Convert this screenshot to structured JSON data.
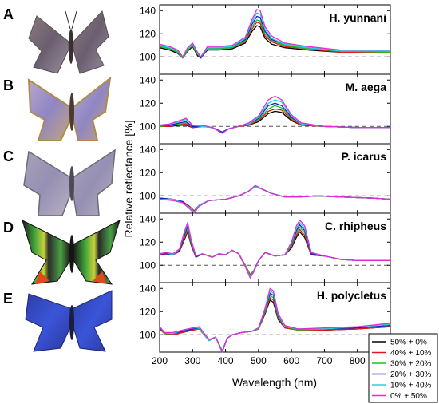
{
  "panels": [
    {
      "letter": "A",
      "species": "H. yunnani"
    },
    {
      "letter": "B",
      "species": "M. aega"
    },
    {
      "letter": "C",
      "species": "P. icarus"
    },
    {
      "letter": "D",
      "species": "C. rhipheus"
    },
    {
      "letter": "E",
      "species": "H. polycletus"
    }
  ],
  "chart_data": {
    "type": "line",
    "xlabel": "Wavelength (nm)",
    "ylabel": "Relative reflectance [%]",
    "xlim": [
      200,
      900
    ],
    "ylim": [
      85,
      145
    ],
    "x_ticks": [
      200,
      300,
      400,
      500,
      600,
      700,
      800
    ],
    "y_ticks": [
      100,
      120,
      140
    ],
    "reference_line": 100,
    "legend_position": "bottom-right",
    "series_meta": [
      {
        "name": "50% + 0%",
        "color": "#000000"
      },
      {
        "name": "40% + 10%",
        "color": "#e8141a"
      },
      {
        "name": "30% + 20%",
        "color": "#19c31d"
      },
      {
        "name": "20% + 30%",
        "color": "#1c1ccf"
      },
      {
        "name": "10% + 40%",
        "color": "#22d4dc"
      },
      {
        "name": "0% + 50%",
        "color": "#e42ad8"
      }
    ],
    "subplots": [
      {
        "title": "H. yunnani",
        "x": [
          200,
          230,
          255,
          270,
          285,
          300,
          315,
          325,
          345,
          380,
          420,
          460,
          480,
          495,
          505,
          520,
          540,
          580,
          650,
          750,
          900
        ],
        "series": [
          [
            108,
            106,
            103,
            99,
            105,
            109,
            101,
            99,
            106,
            106,
            107,
            112,
            122,
            127,
            126,
            116,
            111,
            108,
            106,
            104,
            104
          ],
          [
            109,
            107,
            104,
            99,
            106,
            110,
            102,
            99,
            107,
            107,
            108,
            113,
            124,
            130,
            129,
            118,
            113,
            109,
            107,
            104,
            104
          ],
          [
            109,
            107,
            104,
            99,
            106,
            110,
            102,
            99,
            107,
            107,
            108,
            114,
            126,
            132,
            131,
            120,
            114,
            110,
            107,
            105,
            104
          ],
          [
            110,
            108,
            105,
            100,
            107,
            111,
            103,
            99,
            108,
            108,
            109,
            115,
            128,
            135,
            134,
            122,
            115,
            111,
            108,
            105,
            105
          ],
          [
            110,
            108,
            105,
            100,
            107,
            111,
            103,
            100,
            108,
            108,
            109,
            116,
            130,
            138,
            137,
            124,
            116,
            111,
            108,
            105,
            105
          ],
          [
            111,
            109,
            106,
            100,
            108,
            112,
            104,
            100,
            109,
            109,
            110,
            117,
            132,
            141,
            140,
            126,
            118,
            112,
            109,
            106,
            106
          ]
        ]
      },
      {
        "title": "M. aega",
        "x": [
          200,
          230,
          260,
          280,
          300,
          330,
          360,
          390,
          410,
          440,
          470,
          500,
          530,
          550,
          570,
          600,
          630,
          700,
          800,
          900
        ],
        "series": [
          [
            100,
            100,
            101,
            101,
            99,
            100,
            99,
            95,
            98,
            100,
            101,
            104,
            111,
            113,
            112,
            105,
            101,
            100,
            99,
            99
          ],
          [
            100,
            100,
            102,
            102,
            99,
            100,
            99,
            95,
            98,
            100,
            101,
            105,
            113,
            115,
            114,
            106,
            101,
            100,
            99,
            99
          ],
          [
            100,
            101,
            102,
            103,
            100,
            100,
            99,
            95,
            98,
            100,
            102,
            106,
            115,
            118,
            116,
            107,
            102,
            100,
            99,
            99
          ],
          [
            101,
            101,
            103,
            104,
            100,
            100,
            99,
            95,
            98,
            100,
            102,
            107,
            118,
            120,
            118,
            108,
            102,
            100,
            99,
            99
          ],
          [
            101,
            102,
            104,
            106,
            101,
            100,
            99,
            94,
            98,
            100,
            102,
            108,
            120,
            123,
            121,
            109,
            102,
            100,
            99,
            99
          ],
          [
            101,
            102,
            105,
            107,
            101,
            101,
            99,
            94,
            98,
            100,
            103,
            109,
            123,
            126,
            123,
            110,
            103,
            100,
            99,
            99
          ]
        ]
      },
      {
        "title": "P. icarus",
        "x": [
          200,
          240,
          270,
          290,
          305,
          320,
          350,
          400,
          440,
          470,
          490,
          510,
          540,
          580,
          620,
          680,
          750,
          850,
          900
        ],
        "series": [
          [
            98,
            97,
            95,
            91,
            87,
            92,
            96,
            97,
            100,
            104,
            108,
            106,
            102,
            99,
            99,
            100,
            99,
            98,
            97
          ],
          [
            98,
            97,
            95,
            91,
            87,
            92,
            96,
            97,
            100,
            104,
            108,
            106,
            102,
            99,
            99,
            100,
            99,
            98,
            97
          ],
          [
            98,
            97,
            95,
            90,
            86,
            92,
            96,
            97,
            100,
            104,
            108,
            106,
            102,
            99,
            99,
            100,
            99,
            98,
            97
          ],
          [
            98,
            97,
            95,
            90,
            86,
            92,
            96,
            97,
            100,
            104,
            108,
            106,
            102,
            99,
            99,
            100,
            99,
            98,
            97
          ],
          [
            97,
            97,
            94,
            90,
            86,
            92,
            96,
            97,
            100,
            104,
            108,
            106,
            102,
            99,
            99,
            100,
            99,
            98,
            97
          ],
          [
            97,
            96,
            94,
            89,
            85,
            91,
            96,
            97,
            100,
            104,
            109,
            106,
            102,
            99,
            99,
            100,
            99,
            98,
            97
          ]
        ]
      },
      {
        "title": "C. rhipheus",
        "x": [
          200,
          220,
          240,
          260,
          275,
          285,
          295,
          310,
          330,
          360,
          380,
          400,
          420,
          440,
          460,
          475,
          485,
          500,
          520,
          550,
          580,
          600,
          615,
          625,
          640,
          660,
          700,
          750,
          800,
          900
        ],
        "series": [
          [
            109,
            110,
            109,
            112,
            122,
            129,
            118,
            107,
            110,
            107,
            110,
            109,
            113,
            110,
            100,
            92,
            95,
            104,
            111,
            108,
            109,
            115,
            124,
            129,
            124,
            109,
            108,
            105,
            104,
            104
          ],
          [
            109,
            110,
            109,
            112,
            123,
            130,
            119,
            107,
            110,
            107,
            110,
            109,
            113,
            110,
            100,
            92,
            95,
            104,
            111,
            108,
            109,
            116,
            126,
            131,
            126,
            109,
            108,
            105,
            104,
            104
          ],
          [
            110,
            110,
            109,
            113,
            125,
            132,
            120,
            107,
            110,
            107,
            110,
            109,
            113,
            110,
            100,
            91,
            95,
            104,
            111,
            108,
            109,
            117,
            128,
            133,
            128,
            110,
            108,
            105,
            104,
            104
          ],
          [
            110,
            110,
            109,
            113,
            126,
            134,
            121,
            107,
            110,
            107,
            110,
            109,
            113,
            110,
            99,
            90,
            94,
            104,
            111,
            108,
            109,
            118,
            130,
            135,
            130,
            110,
            108,
            105,
            104,
            104
          ],
          [
            110,
            111,
            109,
            114,
            128,
            136,
            122,
            108,
            110,
            107,
            110,
            109,
            113,
            110,
            99,
            90,
            94,
            104,
            111,
            108,
            109,
            119,
            132,
            137,
            132,
            111,
            108,
            105,
            104,
            104
          ],
          [
            110,
            111,
            110,
            114,
            129,
            137,
            123,
            108,
            110,
            107,
            110,
            109,
            113,
            110,
            99,
            89,
            94,
            104,
            111,
            108,
            109,
            120,
            134,
            139,
            134,
            111,
            108,
            105,
            104,
            104
          ]
        ]
      },
      {
        "title": "H. polycletus",
        "x": [
          200,
          215,
          240,
          270,
          300,
          320,
          350,
          370,
          390,
          405,
          420,
          450,
          480,
          500,
          520,
          535,
          545,
          560,
          580,
          620,
          700,
          800,
          900
        ],
        "series": [
          [
            105,
            101,
            100,
            102,
            104,
            105,
            95,
            98,
            86,
            97,
            100,
            102,
            103,
            105,
            118,
            130,
            128,
            113,
            106,
            104,
            104,
            105,
            107
          ],
          [
            105,
            101,
            100,
            102,
            104,
            105,
            95,
            98,
            86,
            97,
            100,
            102,
            103,
            105,
            119,
            132,
            130,
            114,
            106,
            104,
            104,
            105,
            107
          ],
          [
            106,
            101,
            101,
            103,
            105,
            105,
            95,
            98,
            86,
            97,
            100,
            102,
            103,
            105,
            120,
            134,
            132,
            115,
            107,
            104,
            105,
            106,
            108
          ],
          [
            106,
            102,
            101,
            103,
            105,
            106,
            95,
            98,
            85,
            97,
            100,
            102,
            103,
            106,
            121,
            136,
            134,
            116,
            107,
            105,
            105,
            106,
            108
          ],
          [
            107,
            102,
            101,
            104,
            106,
            106,
            95,
            98,
            85,
            97,
            100,
            102,
            103,
            106,
            122,
            138,
            136,
            117,
            107,
            105,
            105,
            107,
            109
          ],
          [
            107,
            102,
            102,
            104,
            106,
            107,
            96,
            98,
            85,
            97,
            100,
            102,
            103,
            106,
            123,
            140,
            138,
            118,
            108,
            105,
            106,
            107,
            110
          ]
        ]
      }
    ]
  }
}
